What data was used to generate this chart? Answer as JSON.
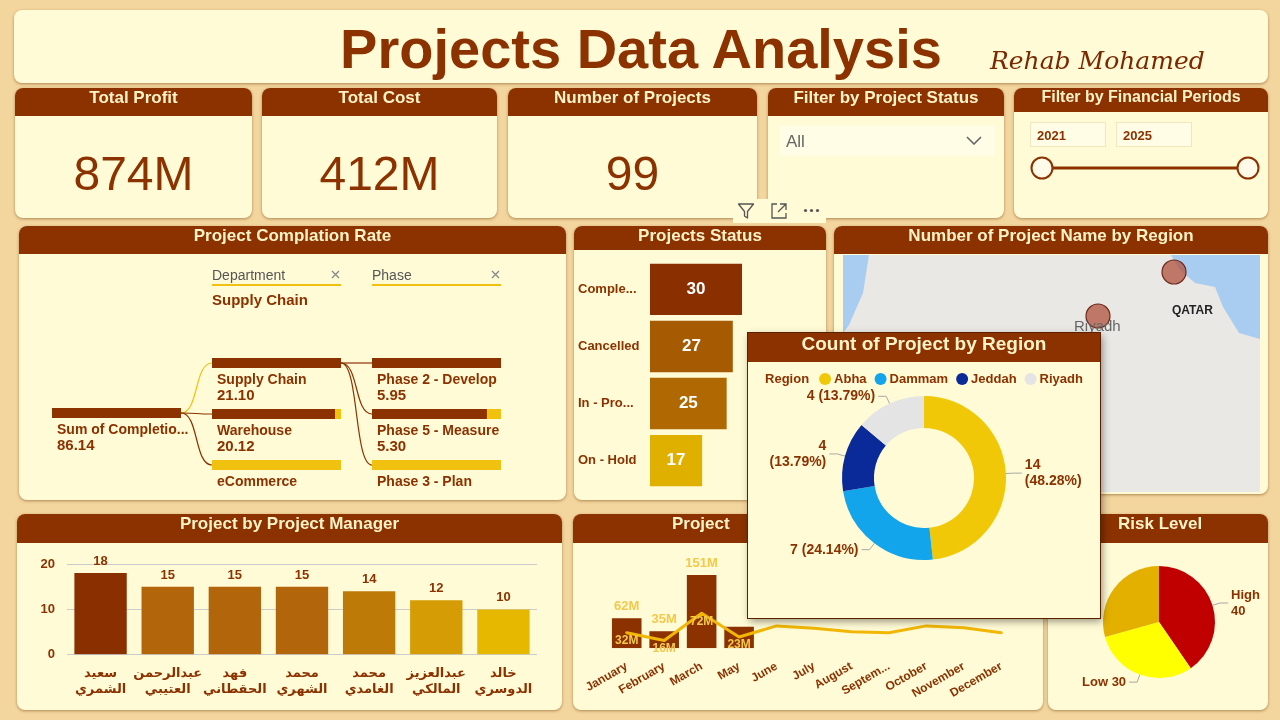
{
  "chart_data": [
    {
      "type": "other",
      "title": "Projects Data Analysis",
      "subtitle": "Rehab Mohamed"
    },
    {
      "type": "other",
      "title": "Total Profit",
      "annotations": [
        "874M"
      ]
    },
    {
      "type": "other",
      "title": "Total Cost",
      "annotations": [
        "412M"
      ]
    },
    {
      "type": "other",
      "title": "Number of Projects",
      "annotations": [
        "99"
      ]
    },
    {
      "type": "other",
      "title": "Filter by Project Status",
      "annotations": [
        "All"
      ]
    },
    {
      "type": "other",
      "title": "Filter by Financial Periods",
      "annotations": [
        "2021",
        "2025"
      ]
    },
    {
      "type": "other",
      "title": "Project Complation Rate",
      "categories": [
        "Sum of Completio...",
        "Supply Chain",
        "Warehouse",
        "eCommerce",
        "Phase 2 - Develop",
        "Phase 5 - Measure",
        "Phase 3 - Plan"
      ],
      "values": [
        86.14,
        21.1,
        20.12,
        null,
        5.95,
        5.3,
        null
      ],
      "value_labels": [
        "86.14",
        "21.10",
        "20.12",
        null,
        "5.95",
        "5.30",
        null
      ],
      "annotations": [
        "Department",
        "Phase",
        "Supply Chain"
      ]
    },
    {
      "type": "bar",
      "orientation": "horizontal",
      "title": "Projects Status",
      "categories": [
        "Comple...",
        "Cancelled",
        "In - Pro...",
        "On - Hold"
      ],
      "values": [
        30,
        27,
        25,
        17
      ],
      "colors": [
        "#8a3000",
        "#a65a02",
        "#b06802",
        "#e0b000"
      ],
      "data_labels": true,
      "tick_labels": "y"
    },
    {
      "type": "other",
      "title": "Number of Project Name by Region",
      "annotations": [
        "Riyadh",
        "QATAR"
      ]
    },
    {
      "type": "donut",
      "title": "Count of Project by Region",
      "legend_title": "Region",
      "legend": "top",
      "categories": [
        "Abha",
        "Dammam",
        "Jeddah",
        "Riyadh"
      ],
      "values": [
        14,
        7,
        4,
        4
      ],
      "colors": [
        "#f0c808",
        "#12a5ec",
        "#0b2a9a",
        "#e4e4e4"
      ],
      "value_labels": [
        "14 (48.28%)",
        "7 (24.14%)",
        "4 (13.79%)",
        "4 (13.79%)"
      ]
    },
    {
      "type": "bar",
      "title": "Project by Project Manager",
      "categories": [
        "سعيد الشمري",
        "عبدالرحمن العتيبي",
        "فهد الحقطاني",
        "محمد الشهري",
        "محمد الغامدي",
        "عبدالعزيز المالكي",
        "خالد الدوسري"
      ],
      "values": [
        18,
        15,
        15,
        15,
        14,
        12,
        10
      ],
      "colors": [
        "#8a3000",
        "#b3650b",
        "#b3650b",
        "#b3650b",
        "#be7a07",
        "#d59c05",
        "#e6b800"
      ],
      "ylim": [
        0,
        20
      ],
      "yticks": [
        0,
        10,
        20
      ],
      "grid": "y",
      "data_labels": true
    },
    {
      "type": "bar",
      "title": "Project",
      "categories": [
        "January",
        "February",
        "March",
        "May",
        "June",
        "July",
        "August",
        "Septem...",
        "October",
        "November",
        "December"
      ],
      "series": [
        {
          "type": "bar",
          "color": "#8b3200",
          "values": [
            62,
            35,
            151,
            44,
            null,
            null,
            null,
            null,
            null,
            null,
            null
          ],
          "value_labels": [
            "62M",
            "35M",
            "151M",
            null,
            null,
            null,
            null,
            null,
            null,
            null,
            null
          ]
        },
        {
          "type": "line",
          "color": "#f2b705",
          "values": [
            32,
            16,
            72,
            23,
            46,
            41,
            34,
            32,
            46,
            42,
            32
          ],
          "value_labels": [
            "32M",
            "16M",
            "72M",
            "23M",
            null,
            null,
            null,
            null,
            null,
            null,
            null
          ]
        }
      ]
    },
    {
      "type": "pie",
      "title": "Risk Level",
      "categories": [
        "High",
        "Low",
        null
      ],
      "values": [
        40,
        30,
        29
      ],
      "colors": [
        "#c00000",
        "#ffff00",
        "#e3b000"
      ],
      "value_labels": [
        "40",
        "30",
        null
      ]
    }
  ]
}
